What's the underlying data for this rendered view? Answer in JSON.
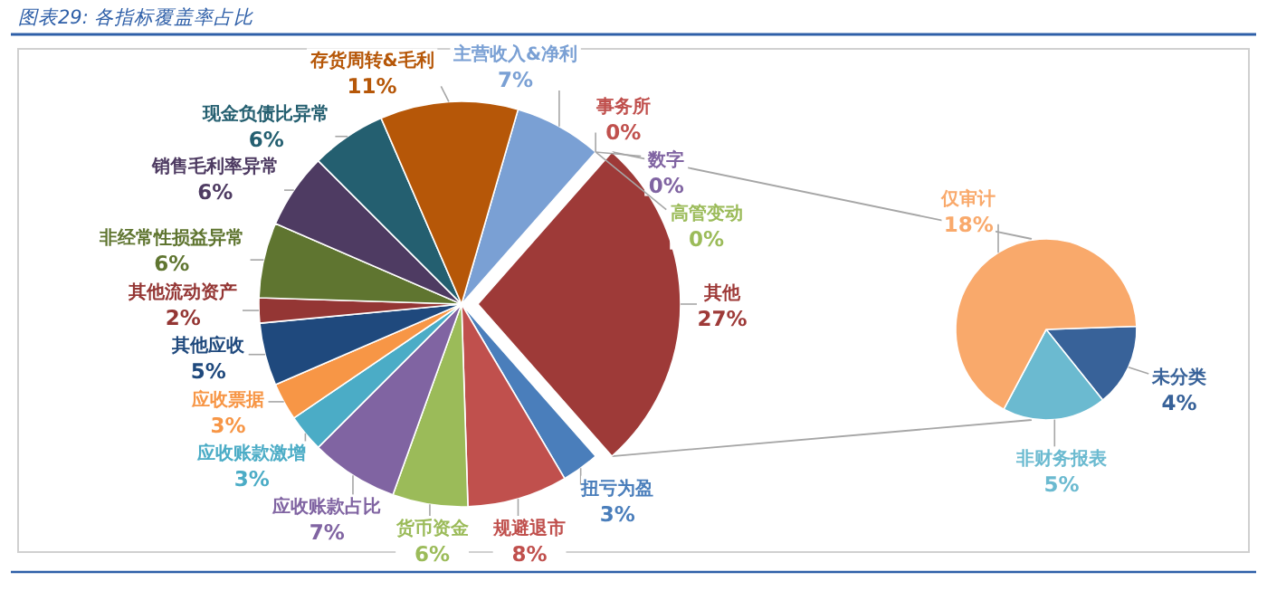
{
  "chart_data": [
    {
      "type": "pie",
      "title": "图表29: 各指标覆盖率占比",
      "categories": [
        "主营收入&净利",
        "事务所",
        "数字",
        "高管变动",
        "其他",
        "扭亏为盈",
        "规避退市",
        "货币资金",
        "应收账款占比",
        "应收账款激增",
        "应收票据",
        "其他应收",
        "其他流动资产",
        "非经常性损益异常",
        "销售毛利率异常",
        "现金负债比异常",
        "存货周转&毛利"
      ],
      "values": [
        7,
        0,
        0,
        0,
        27,
        3,
        8,
        6,
        7,
        3,
        3,
        5,
        2,
        6,
        6,
        6,
        11
      ],
      "value_labels": [
        "7%",
        "0%",
        "0%",
        "0%",
        "27%",
        "3%",
        "8%",
        "6%",
        "7%",
        "3%",
        "3%",
        "5%",
        "2%",
        "6%",
        "6%",
        "6%",
        "11%"
      ],
      "colors": [
        "#7aa0d4",
        "#c0504d",
        "#8064a2",
        "#9bbb59",
        "#9e3a38",
        "#4a7ebb",
        "#c0504d",
        "#9bbb59",
        "#8064a2",
        "#4bacc6",
        "#f79646",
        "#1f497d",
        "#943634",
        "#5f7530",
        "#4e3b62",
        "#245f70",
        "#b65708"
      ]
    },
    {
      "type": "pie",
      "categories": [
        "未分类",
        "非财务报表",
        "仅审计"
      ],
      "values": [
        4,
        5,
        18
      ],
      "value_labels": [
        "4%",
        "5%",
        "18%"
      ],
      "colors": [
        "#386299",
        "#6bbad0",
        "#f9a96b"
      ]
    }
  ]
}
